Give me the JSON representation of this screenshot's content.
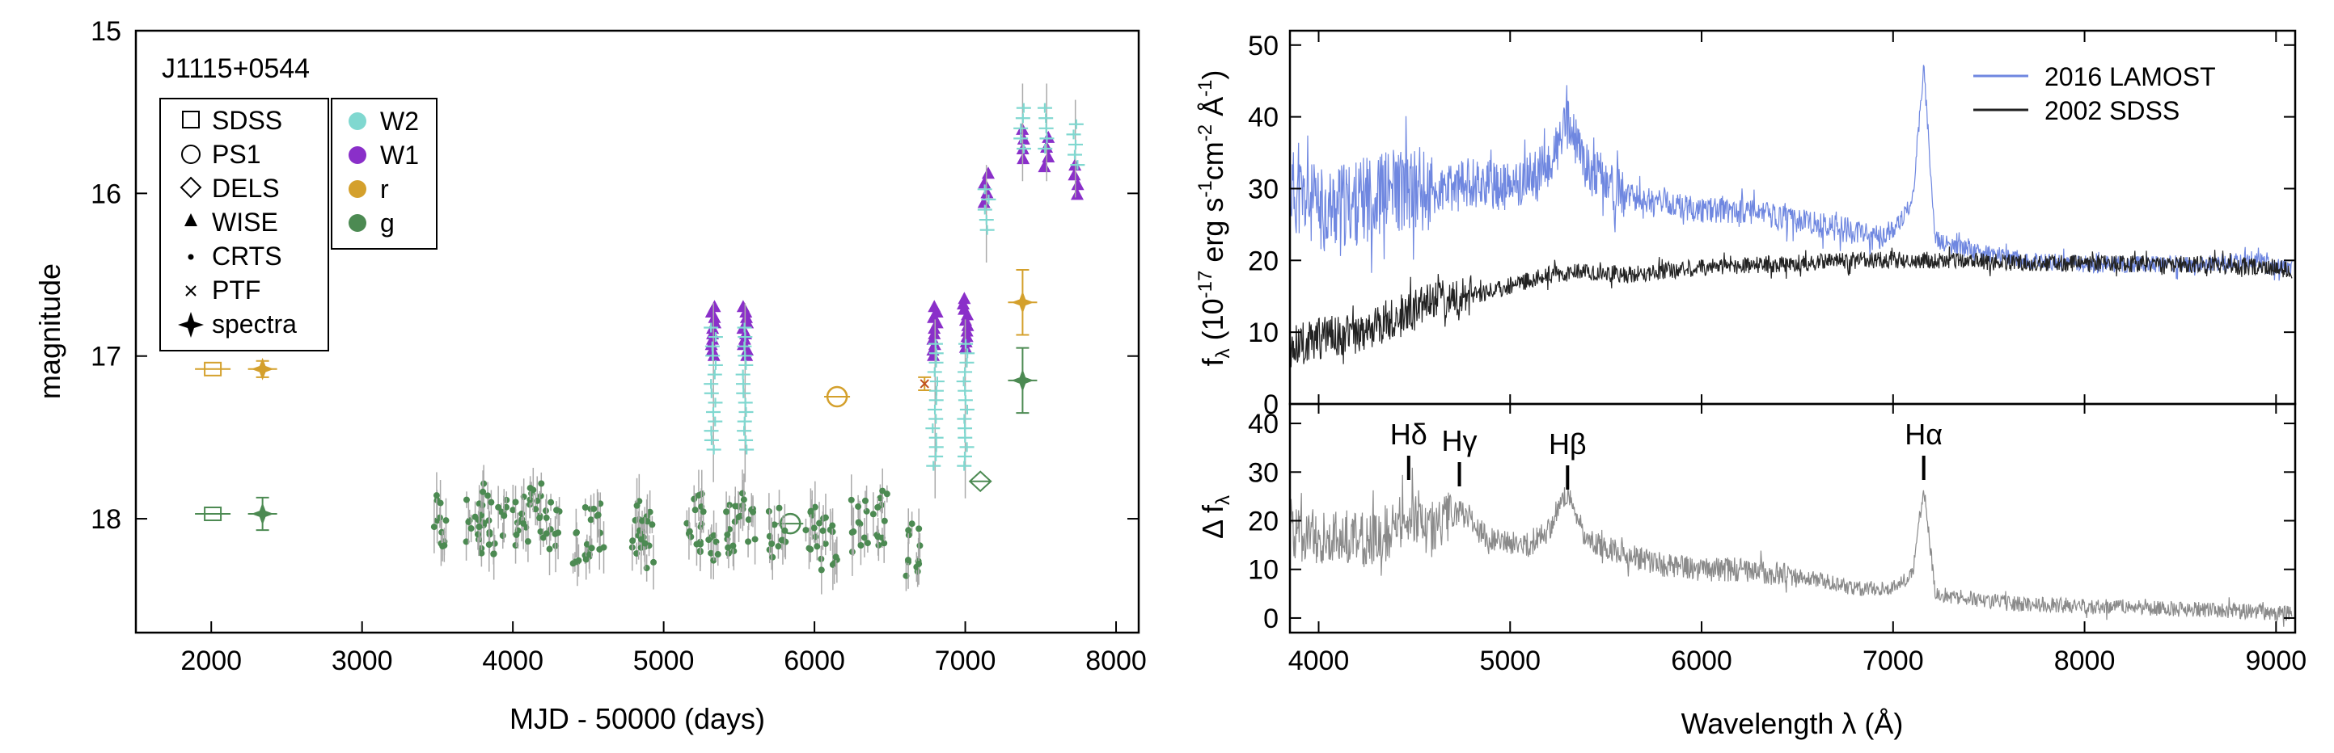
{
  "chart_data": [
    {
      "type": "scatter",
      "title": "J1115+0544",
      "xlabel": "MJD - 50000 (days)",
      "ylabel": "magnitude",
      "xlim": [
        1500,
        8150
      ],
      "ylim": [
        18.7,
        15.0
      ],
      "y_inverted": true,
      "x_ticks": [
        2000,
        3000,
        4000,
        5000,
        6000,
        7000,
        8000
      ],
      "y_ticks": [
        15,
        16,
        17,
        18
      ],
      "legend_instruments": [
        "SDSS",
        "PS1",
        "DELS",
        "WISE",
        "CRTS",
        "PTF",
        "spectra"
      ],
      "legend_bands": [
        "W2",
        "W1",
        "r",
        "g"
      ],
      "colors": {
        "W2": "#80d8d0",
        "W1": "#8a2fc9",
        "r": "#d4a02c",
        "g": "#4c8a52",
        "error": "#aaaaaa"
      },
      "series": [
        {
          "instrument": "SDSS",
          "band": "r",
          "marker": "square",
          "points": [
            [
              2010,
              17.08
            ]
          ]
        },
        {
          "instrument": "SDSS",
          "band": "g",
          "marker": "square",
          "points": [
            [
              2010,
              17.97
            ]
          ]
        },
        {
          "instrument": "spectra",
          "band": "r",
          "marker": "star",
          "points": [
            [
              2340,
              17.08,
              0.05
            ],
            [
              7380,
              16.67,
              0.2
            ]
          ]
        },
        {
          "instrument": "spectra",
          "band": "g",
          "marker": "star",
          "points": [
            [
              2340,
              17.97,
              0.1
            ],
            [
              7380,
              17.15,
              0.2
            ]
          ]
        },
        {
          "instrument": "PS1",
          "band": "r",
          "marker": "circle",
          "points": [
            [
              6150,
              17.25
            ]
          ]
        },
        {
          "instrument": "PS1",
          "band": "g",
          "marker": "circle",
          "points": [
            [
              5840,
              18.03
            ]
          ]
        },
        {
          "instrument": "DELS",
          "band": "g",
          "marker": "diamond",
          "points": [
            [
              7100,
              17.77
            ]
          ]
        },
        {
          "instrument": "PTF",
          "band": "r",
          "marker": "cross",
          "points": [
            [
              6730,
              17.17
            ]
          ]
        },
        {
          "instrument": "WISE",
          "band": "W1",
          "marker": "triangle",
          "points": [
            [
              5330,
              16.85
            ],
            [
              5540,
              16.85
            ],
            [
              6800,
              16.85
            ],
            [
              7000,
              16.8
            ],
            [
              7140,
              15.97
            ],
            [
              7380,
              15.7
            ],
            [
              7540,
              15.75
            ],
            [
              7730,
              15.92
            ]
          ]
        },
        {
          "instrument": "WISE",
          "band": "W2",
          "marker": "plus",
          "points": [
            [
              5330,
              17.2
            ],
            [
              5540,
              17.2
            ],
            [
              6800,
              17.3
            ],
            [
              7000,
              17.3
            ],
            [
              7140,
              16.1
            ],
            [
              7380,
              15.6
            ],
            [
              7540,
              15.6
            ],
            [
              7730,
              15.7
            ]
          ]
        },
        {
          "instrument": "CRTS",
          "band": "g",
          "marker": "dot",
          "points": [
            [
              3500,
              18.0
            ],
            [
              3750,
              18.05
            ],
            [
              3800,
              17.95
            ],
            [
              3900,
              18.05
            ],
            [
              4050,
              18.0
            ],
            [
              4150,
              17.95
            ],
            [
              4250,
              18.05
            ],
            [
              4450,
              18.1
            ],
            [
              4550,
              18.05
            ],
            [
              4850,
              18.05
            ],
            [
              4900,
              18.15
            ],
            [
              5200,
              18.0
            ],
            [
              5300,
              18.1
            ],
            [
              5450,
              18.05
            ],
            [
              5550,
              18.0
            ],
            [
              5750,
              18.1
            ],
            [
              6000,
              18.05
            ],
            [
              6100,
              18.15
            ],
            [
              6300,
              18.05
            ],
            [
              6450,
              18.0
            ],
            [
              6650,
              18.2
            ]
          ]
        }
      ]
    },
    {
      "type": "line",
      "xlabel": "Wavelength λ (Å)",
      "ylabel_top": "f_λ (10^-17 erg s^-1 cm^-2 Å^-1)",
      "ylabel_bottom": "Δ f_λ",
      "xlim": [
        3850,
        9100
      ],
      "ylim_top": [
        0,
        52
      ],
      "ylim_bottom": [
        -3,
        44
      ],
      "x_ticks": [
        4000,
        5000,
        6000,
        7000,
        8000,
        9000
      ],
      "y_ticks_top": [
        0,
        10,
        20,
        30,
        40,
        50
      ],
      "y_ticks_bottom": [
        0,
        10,
        20,
        30,
        40
      ],
      "legend_placement": "top-right",
      "lines": [
        {
          "name": "Hδ",
          "wavelength": 4470
        },
        {
          "name": "Hγ",
          "wavelength": 4735
        },
        {
          "name": "Hβ",
          "wavelength": 5300
        },
        {
          "name": "Hα",
          "wavelength": 7160
        }
      ],
      "series": [
        {
          "name": "2016 LAMOST",
          "color": "#6f87e0",
          "x": [
            3850,
            4000,
            4200,
            4400,
            4600,
            4800,
            5000,
            5200,
            5300,
            5400,
            5600,
            5800,
            6000,
            6200,
            6400,
            6600,
            6800,
            6900,
            7000,
            7100,
            7160,
            7220,
            7300,
            7500,
            7700,
            8000,
            8300,
            8600,
            8900,
            9000,
            9100
          ],
          "y": [
            30,
            27,
            28,
            30,
            29,
            31,
            30,
            33,
            39,
            33,
            29,
            28,
            27,
            27,
            26,
            25,
            24,
            23,
            24,
            28,
            47,
            23,
            22,
            21,
            20,
            19.5,
            19.5,
            19.5,
            20,
            19,
            19
          ]
        },
        {
          "name": "2002 SDSS",
          "color": "#222222",
          "x": [
            3850,
            4000,
            4200,
            4400,
            4600,
            4800,
            5000,
            5200,
            5400,
            5600,
            5800,
            6000,
            6400,
            6800,
            7000,
            7200,
            7500,
            8000,
            8500,
            9000,
            9100
          ],
          "y": [
            8,
            9,
            10,
            12,
            14,
            15,
            16.5,
            18,
            18.5,
            18,
            18.5,
            19,
            19.5,
            20,
            20,
            20,
            19.8,
            19.5,
            19.5,
            19,
            18.5
          ]
        },
        {
          "name": "Δ",
          "color": "#8a8a8a",
          "x": [
            3850,
            4000,
            4200,
            4400,
            4470,
            4600,
            4735,
            4900,
            5100,
            5200,
            5300,
            5400,
            5600,
            5800,
            6000,
            6200,
            6400,
            6600,
            6800,
            7000,
            7100,
            7160,
            7220,
            7400,
            7600,
            8000,
            8400,
            8800,
            9000
          ],
          "y": [
            18,
            17,
            16,
            18,
            22,
            18,
            22,
            16,
            15,
            18,
            26,
            16,
            13,
            11,
            10,
            10,
            9,
            8,
            6,
            6,
            9,
            27,
            5,
            4,
            3,
            2.5,
            2,
            1.5,
            1
          ]
        }
      ]
    }
  ]
}
